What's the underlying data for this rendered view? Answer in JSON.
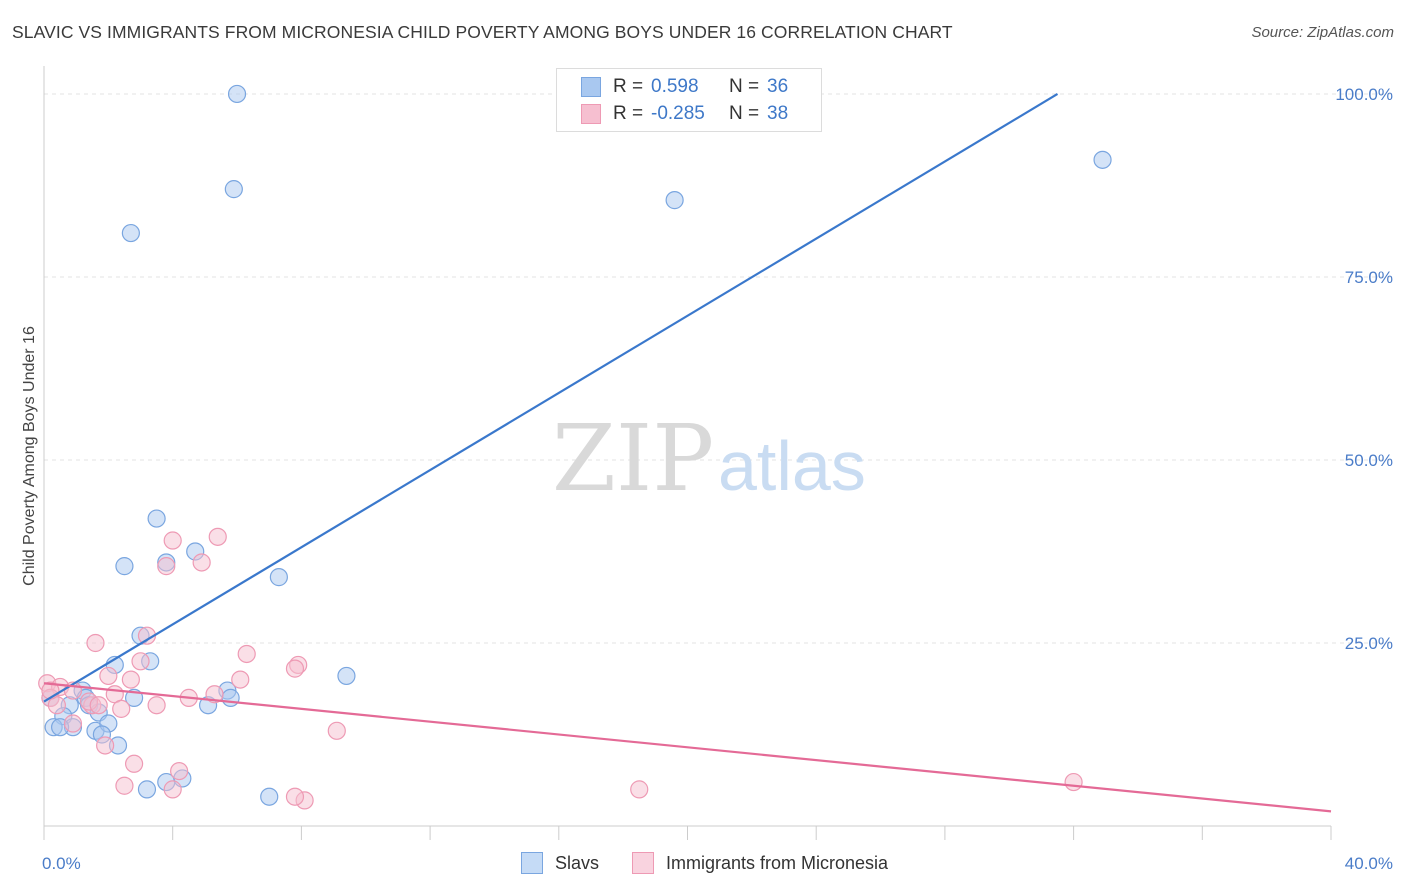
{
  "title": "SLAVIC VS IMMIGRANTS FROM MICRONESIA CHILD POVERTY AMONG BOYS UNDER 16 CORRELATION CHART",
  "source": "Source: ZipAtlas.com",
  "watermark": {
    "zip": "ZIP",
    "atlas": "atlas"
  },
  "colors": {
    "slavs_fill": "#a9c8f0",
    "slavs_stroke": "#7aa6e0",
    "slavs_line": "#3a78cc",
    "micro_fill": "#f6bfd0",
    "micro_stroke": "#ee9ab4",
    "micro_line": "#e46a96",
    "grid": "#e3e3e3",
    "tick_text": "#4a7cc8"
  },
  "legend": {
    "rows": [
      {
        "r_label": "R =",
        "r_value": "0.598",
        "n_label": "N =",
        "n_value": "36"
      },
      {
        "r_label": "R =",
        "r_value": "-0.285",
        "n_label": "N =",
        "n_value": "38"
      }
    ]
  },
  "bottom_legend": {
    "slavs": "Slavs",
    "micro": "Immigrants from Micronesia"
  },
  "chart_data": {
    "type": "scatter",
    "xlabel": "",
    "ylabel": "Child Poverty Among Boys Under 16",
    "xlim": [
      0,
      40
    ],
    "ylim": [
      0,
      103
    ],
    "x_tick_labels": [
      {
        "value": 0,
        "label": "0.0%"
      },
      {
        "value": 40,
        "label": "40.0%"
      }
    ],
    "y_tick_labels": [
      {
        "value": 25,
        "label": "25.0%"
      },
      {
        "value": 50,
        "label": "50.0%"
      },
      {
        "value": 75,
        "label": "75.0%"
      },
      {
        "value": 100,
        "label": "100.0%"
      }
    ],
    "y_gridlines": [
      25,
      50,
      75,
      100
    ],
    "legend_position": "top-center",
    "series": [
      {
        "name": "Slavs",
        "r": 0.598,
        "n": 36,
        "trend": [
          [
            0,
            17.0
          ],
          [
            31.5,
            100.0
          ]
        ],
        "points": [
          [
            6.0,
            100.0
          ],
          [
            5.9,
            87.0
          ],
          [
            2.7,
            81.0
          ],
          [
            19.6,
            85.5
          ],
          [
            32.9,
            91.0
          ],
          [
            3.5,
            42.0
          ],
          [
            4.7,
            37.5
          ],
          [
            2.5,
            35.5
          ],
          [
            3.8,
            36.0
          ],
          [
            7.3,
            34.0
          ],
          [
            3.0,
            26.0
          ],
          [
            3.3,
            22.5
          ],
          [
            2.2,
            22.0
          ],
          [
            9.4,
            20.5
          ],
          [
            5.7,
            18.5
          ],
          [
            1.2,
            18.5
          ],
          [
            0.2,
            17.5
          ],
          [
            1.3,
            17.5
          ],
          [
            2.8,
            17.5
          ],
          [
            5.8,
            17.5
          ],
          [
            0.8,
            16.5
          ],
          [
            1.4,
            16.5
          ],
          [
            5.1,
            16.5
          ],
          [
            1.7,
            15.5
          ],
          [
            0.6,
            15.0
          ],
          [
            0.3,
            13.5
          ],
          [
            1.6,
            13.0
          ],
          [
            0.9,
            13.5
          ],
          [
            2.0,
            14.0
          ],
          [
            1.8,
            12.5
          ],
          [
            2.3,
            11.0
          ],
          [
            3.8,
            6.0
          ],
          [
            4.3,
            6.5
          ],
          [
            3.2,
            5.0
          ],
          [
            7.0,
            4.0
          ],
          [
            0.5,
            13.5
          ]
        ]
      },
      {
        "name": "Immigrants from Micronesia",
        "r": -0.285,
        "n": 38,
        "trend": [
          [
            0,
            19.5
          ],
          [
            40,
            2.0
          ]
        ],
        "points": [
          [
            5.4,
            39.5
          ],
          [
            4.0,
            39.0
          ],
          [
            4.9,
            36.0
          ],
          [
            3.8,
            35.5
          ],
          [
            3.2,
            26.0
          ],
          [
            1.6,
            25.0
          ],
          [
            3.0,
            22.5
          ],
          [
            6.3,
            23.5
          ],
          [
            7.9,
            22.0
          ],
          [
            7.8,
            21.5
          ],
          [
            6.1,
            20.0
          ],
          [
            2.7,
            20.0
          ],
          [
            2.0,
            20.5
          ],
          [
            0.1,
            19.5
          ],
          [
            0.5,
            19.0
          ],
          [
            0.9,
            18.5
          ],
          [
            2.2,
            18.0
          ],
          [
            4.5,
            17.5
          ],
          [
            5.3,
            18.0
          ],
          [
            0.2,
            17.5
          ],
          [
            1.5,
            16.5
          ],
          [
            2.4,
            16.0
          ],
          [
            1.4,
            17.0
          ],
          [
            0.4,
            16.5
          ],
          [
            1.7,
            16.5
          ],
          [
            3.5,
            16.5
          ],
          [
            0.9,
            14.0
          ],
          [
            9.1,
            13.0
          ],
          [
            1.9,
            11.0
          ],
          [
            2.8,
            8.5
          ],
          [
            4.2,
            7.5
          ],
          [
            2.5,
            5.5
          ],
          [
            4.0,
            5.0
          ],
          [
            8.1,
            3.5
          ],
          [
            7.8,
            4.0
          ],
          [
            18.5,
            5.0
          ],
          [
            32.0,
            6.0
          ],
          [
            0.2,
            18.5
          ]
        ]
      }
    ]
  }
}
